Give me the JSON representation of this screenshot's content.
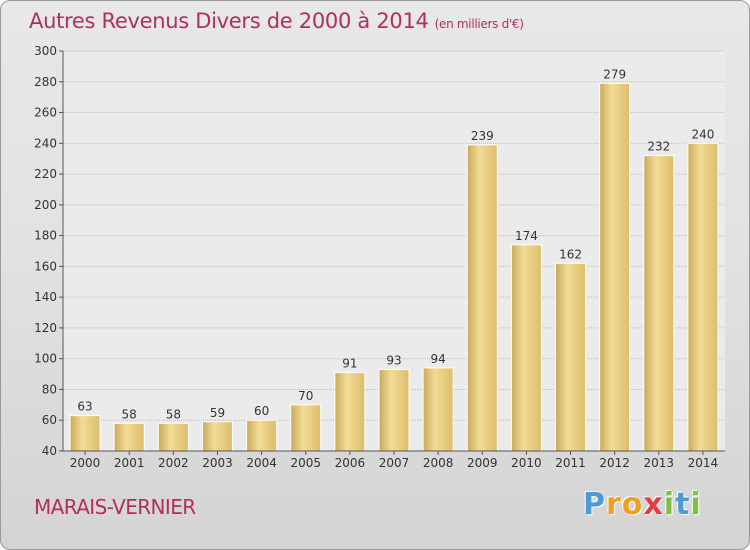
{
  "chart_data": {
    "type": "bar",
    "title": "Autres Revenus Divers de 2000 à 2014",
    "unit": "(en milliers d'€)",
    "categories": [
      "2000",
      "2001",
      "2002",
      "2003",
      "2004",
      "2005",
      "2006",
      "2007",
      "2008",
      "2009",
      "2010",
      "2011",
      "2012",
      "2013",
      "2014"
    ],
    "values": [
      63,
      58,
      58,
      59,
      60,
      70,
      91,
      93,
      94,
      239,
      174,
      162,
      279,
      232,
      240
    ],
    "ylim": [
      40,
      300
    ],
    "yticks": [
      40,
      60,
      80,
      100,
      120,
      140,
      160,
      180,
      200,
      220,
      240,
      260,
      280,
      300
    ],
    "grid": true,
    "bar_color": "#e8cc7a"
  },
  "place": "MARAIS-VERNIER",
  "logo": {
    "letters": [
      "P",
      "r",
      "o",
      "x",
      "i",
      "t",
      "i"
    ],
    "colors": [
      "#4b9bd8",
      "#f0a020",
      "#f0a020",
      "#e63946",
      "#7cc242",
      "#4b9bd8",
      "#7cc242"
    ]
  }
}
